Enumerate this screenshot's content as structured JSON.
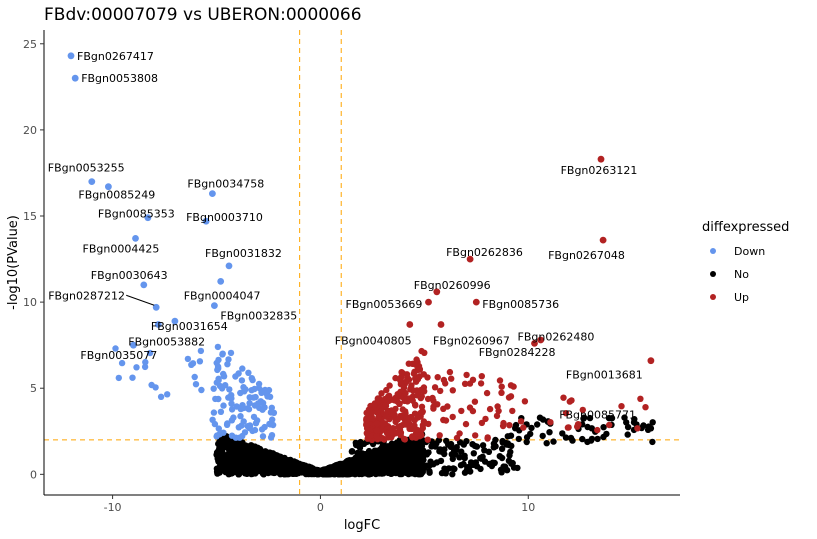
{
  "chart_data": {
    "type": "scatter",
    "title": "FBdv:00007079 vs UBERON:0000066",
    "xlabel": "logFC",
    "ylabel": "-log10(PValue)",
    "xlim": [
      -13.3,
      17.3
    ],
    "ylim": [
      -1.2,
      25.8
    ],
    "x_ticks": [
      -10,
      0,
      10
    ],
    "y_ticks": [
      0,
      5,
      10,
      15,
      20,
      25
    ],
    "grid": false,
    "thresholds": {
      "logFC": [
        -1,
        1
      ],
      "neg_log10_pvalue": 2
    },
    "legend": {
      "title": "diffexpressed",
      "position": "right",
      "entries": [
        {
          "label": "Down",
          "color": "#6495ED"
        },
        {
          "label": "No",
          "color": "#000000"
        },
        {
          "label": "Up",
          "color": "#B22222"
        }
      ]
    },
    "labeled_points": [
      {
        "gene": "FBgn0267417",
        "x": -12.0,
        "y": 24.3,
        "group": "Down"
      },
      {
        "gene": "FBgn0053808",
        "x": -11.8,
        "y": 23.0,
        "group": "Down"
      },
      {
        "gene": "FBgn0053255",
        "x": -11.0,
        "y": 17.0,
        "group": "Down"
      },
      {
        "gene": "FBgn0085249",
        "x": -10.2,
        "y": 16.7,
        "group": "Down"
      },
      {
        "gene": "FBgn0034758",
        "x": -5.2,
        "y": 16.3,
        "group": "Down"
      },
      {
        "gene": "FBgn0085353",
        "x": -8.3,
        "y": 14.9,
        "group": "Down"
      },
      {
        "gene": "FBgn0003710",
        "x": -5.5,
        "y": 14.7,
        "group": "Down"
      },
      {
        "gene": "FBgn0004425",
        "x": -8.9,
        "y": 13.7,
        "group": "Down"
      },
      {
        "gene": "FBgn0031832",
        "x": -4.4,
        "y": 12.1,
        "group": "Down"
      },
      {
        "gene": "FBgn0030643",
        "x": -8.5,
        "y": 11.0,
        "group": "Down"
      },
      {
        "gene": "FBgn0004047",
        "x": -4.8,
        "y": 11.2,
        "group": "Down"
      },
      {
        "gene": "FBgn0287212",
        "x": -7.9,
        "y": 9.7,
        "group": "Down"
      },
      {
        "gene": "FBgn0031654",
        "x": -7.0,
        "y": 8.9,
        "group": "Down"
      },
      {
        "gene": "FBgn0032835",
        "x": -5.1,
        "y": 9.8,
        "group": "Down"
      },
      {
        "gene": "FBgn0053882",
        "x": -7.8,
        "y": 8.7,
        "group": "Down"
      },
      {
        "gene": "FBgn0035077",
        "x": -9.0,
        "y": 7.5,
        "group": "Down"
      },
      {
        "gene": "FBgn0263121",
        "x": 13.5,
        "y": 18.3,
        "group": "Up"
      },
      {
        "gene": "FBgn0267048",
        "x": 13.6,
        "y": 13.6,
        "group": "Up"
      },
      {
        "gene": "FBgn0262836",
        "x": 7.2,
        "y": 12.5,
        "group": "Up"
      },
      {
        "gene": "FBgn0260996",
        "x": 5.6,
        "y": 10.6,
        "group": "Up"
      },
      {
        "gene": "FBgn0053669",
        "x": 5.2,
        "y": 10.0,
        "group": "Up"
      },
      {
        "gene": "FBgn0085736",
        "x": 7.5,
        "y": 10.0,
        "group": "Up"
      },
      {
        "gene": "FBgn0040805",
        "x": 4.3,
        "y": 8.7,
        "group": "Up"
      },
      {
        "gene": "FBgn0260967",
        "x": 5.8,
        "y": 8.7,
        "group": "Up"
      },
      {
        "gene": "FBgn0262480",
        "x": 10.3,
        "y": 7.6,
        "group": "Up"
      },
      {
        "gene": "FBgn0284228",
        "x": 10.6,
        "y": 7.8,
        "group": "Up"
      },
      {
        "gene": "FBgn0013681",
        "x": 15.9,
        "y": 6.6,
        "group": "Up"
      },
      {
        "gene": "FBgn0085771",
        "x": 12.4,
        "y": 2.9,
        "group": "Up"
      }
    ]
  }
}
